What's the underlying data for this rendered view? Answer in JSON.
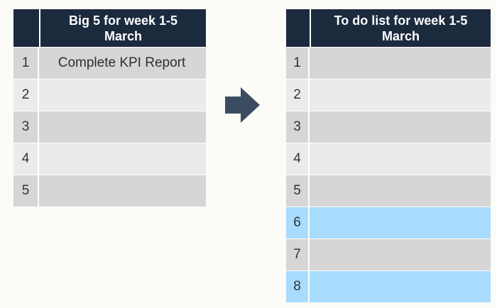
{
  "left_table": {
    "title": "Big 5  for week 1-5\nMarch",
    "rows": [
      {
        "num": "1",
        "text": "Complete KPI Report"
      },
      {
        "num": "2",
        "text": ""
      },
      {
        "num": "3",
        "text": ""
      },
      {
        "num": "4",
        "text": ""
      },
      {
        "num": "5",
        "text": ""
      }
    ]
  },
  "arrow": {
    "icon": "right-arrow-icon",
    "color": "#3c4c60"
  },
  "right_table": {
    "title": "To do list for week 1-5\nMarch",
    "rows": [
      {
        "num": "1",
        "text": ""
      },
      {
        "num": "2",
        "text": ""
      },
      {
        "num": "3",
        "text": ""
      },
      {
        "num": "4",
        "text": ""
      },
      {
        "num": "5",
        "text": ""
      },
      {
        "num": "6",
        "text": ""
      },
      {
        "num": "7",
        "text": ""
      },
      {
        "num": "8",
        "text": ""
      }
    ]
  },
  "colors": {
    "header_bg": "#1c2a3e",
    "row_dark": "#d6d6d6",
    "row_light": "#ebebeb",
    "row_highlight": "#a7dcff"
  }
}
